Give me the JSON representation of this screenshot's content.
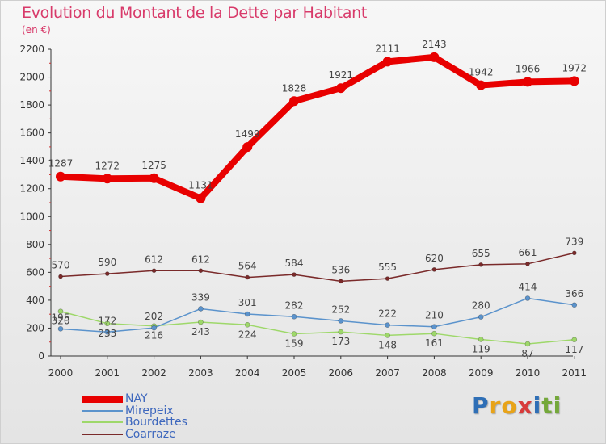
{
  "title": "Evolution du Montant de la Dette par Habitant",
  "subtitle": "(en €)",
  "brand": {
    "letters": [
      "P",
      "r",
      "o",
      "x",
      "i",
      "t",
      "i"
    ],
    "colors": [
      "#2f6fb6",
      "#e8a318",
      "#e8a318",
      "#d83a3a",
      "#2f6fb6",
      "#74a83a",
      "#74a83a"
    ]
  },
  "chart_data": {
    "type": "line",
    "x": [
      "2000",
      "2001",
      "2002",
      "2003",
      "2004",
      "2005",
      "2006",
      "2007",
      "2008",
      "2009",
      "2010",
      "2011"
    ],
    "ylim": [
      0,
      2200
    ],
    "yticks": [
      "0",
      "200",
      "400",
      "600",
      "800",
      "1000",
      "1200",
      "1400",
      "1600",
      "1800",
      "2000",
      "2200"
    ],
    "grid": false,
    "legend_position": "bottom-left",
    "series": [
      {
        "name": "NAY",
        "color": "#e80000",
        "values": [
          1287,
          1272,
          1275,
          1131,
          1499,
          1828,
          1921,
          2111,
          2143,
          1942,
          1966,
          1972
        ]
      },
      {
        "name": "Mirepeix",
        "color": "#5b93cc",
        "values": [
          195,
          172,
          202,
          339,
          301,
          282,
          252,
          222,
          210,
          280,
          414,
          366
        ]
      },
      {
        "name": "Bourdettes",
        "color": "#9ed86a",
        "values": [
          320,
          233,
          216,
          243,
          224,
          159,
          173,
          148,
          161,
          119,
          87,
          117
        ]
      },
      {
        "name": "Coarraze",
        "color": "#7a2a2a",
        "values": [
          570,
          590,
          612,
          612,
          564,
          584,
          536,
          555,
          620,
          655,
          661,
          739
        ]
      }
    ]
  }
}
